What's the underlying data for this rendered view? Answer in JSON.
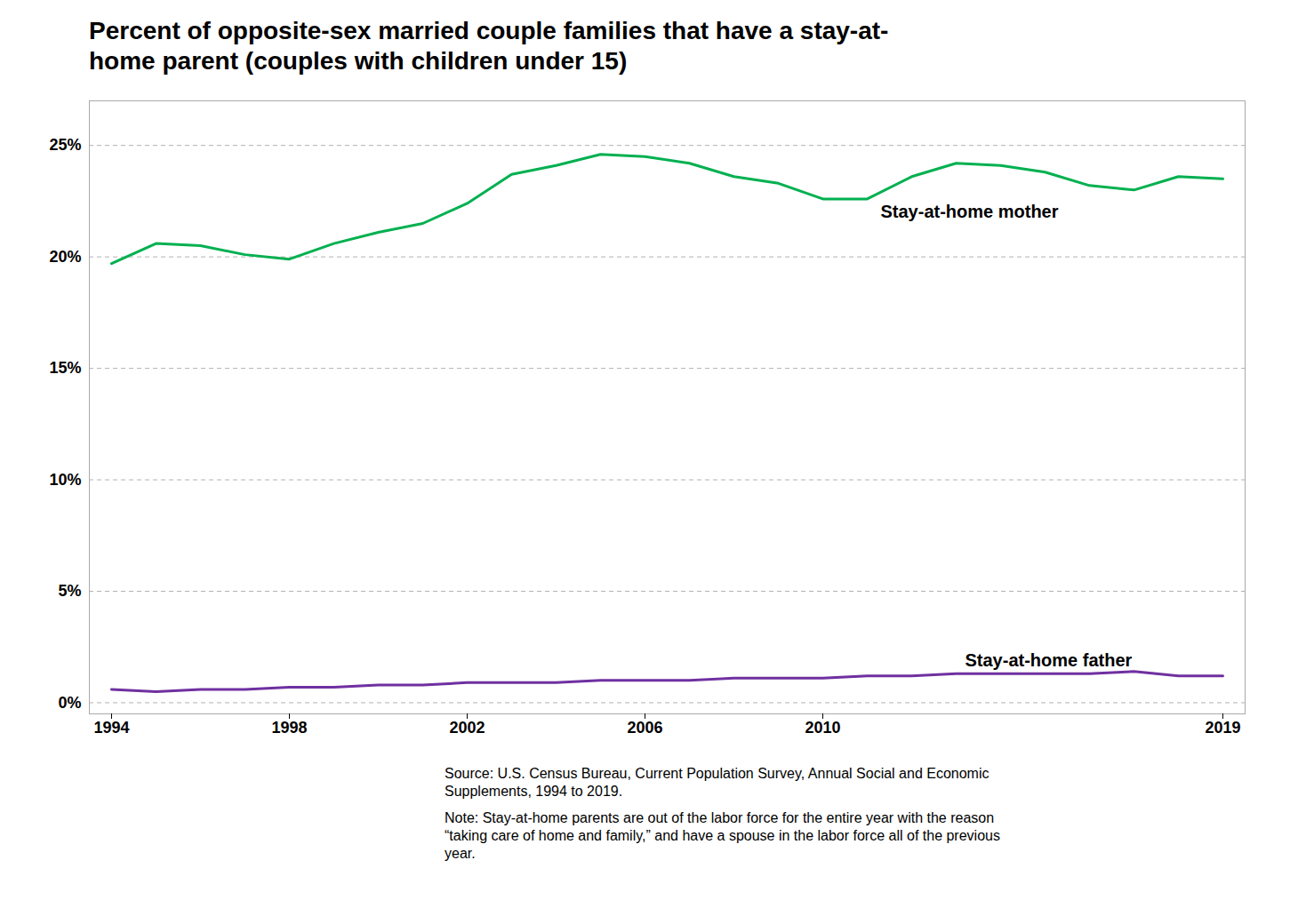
{
  "chart_data": {
    "type": "line",
    "title": "Percent of opposite-sex married couple families that have a stay-at-\nhome parent (couples with children under 15)",
    "x": [
      1994,
      1995,
      1996,
      1997,
      1998,
      1999,
      2000,
      2001,
      2002,
      2003,
      2004,
      2005,
      2006,
      2007,
      2008,
      2009,
      2010,
      2011,
      2012,
      2013,
      2014,
      2015,
      2016,
      2017,
      2018,
      2019
    ],
    "series": [
      {
        "name": "Stay-at-home mother",
        "color": "#00b050",
        "values": [
          19.7,
          20.6,
          20.5,
          20.1,
          19.9,
          20.6,
          21.1,
          21.5,
          22.4,
          23.7,
          24.1,
          24.6,
          24.5,
          24.2,
          23.6,
          23.3,
          22.6,
          22.6,
          23.6,
          24.2,
          24.1,
          23.8,
          23.2,
          23.0,
          23.6,
          23.5
        ]
      },
      {
        "name": "Stay-at-home father",
        "color": "#7030a0",
        "values": [
          0.6,
          0.5,
          0.6,
          0.6,
          0.7,
          0.7,
          0.8,
          0.8,
          0.9,
          0.9,
          0.9,
          1.0,
          1.0,
          1.0,
          1.1,
          1.1,
          1.1,
          1.2,
          1.2,
          1.3,
          1.3,
          1.3,
          1.3,
          1.4,
          1.2,
          1.2
        ]
      }
    ],
    "annotations": [
      {
        "text": "Stay-at-home mother",
        "x": 2011.3,
        "y": 22.0
      },
      {
        "text": "Stay-at-home father",
        "x": 2013.2,
        "y": 1.9
      }
    ],
    "xlim": [
      1993.5,
      2019.5
    ],
    "xticks": [
      1994,
      1998,
      2002,
      2006,
      2010,
      2019
    ],
    "ylim": [
      -0.5,
      27
    ],
    "yticks": [
      {
        "value": 0,
        "label": "0%"
      },
      {
        "value": 5,
        "label": "5%"
      },
      {
        "value": 10,
        "label": "10%"
      },
      {
        "value": 15,
        "label": "15%"
      },
      {
        "value": 20,
        "label": "20%"
      },
      {
        "value": 25,
        "label": "25%"
      }
    ],
    "grid": true,
    "source": "Source: U.S. Census Bureau, Current Population Survey, Annual Social and Economic\nSupplements, 1994 to 2019.",
    "note": "Note: Stay-at-home parents are out of the labor force for the entire year with the reason\n“taking care of home and family,” and have a spouse in the labor force all of the previous\nyear."
  }
}
